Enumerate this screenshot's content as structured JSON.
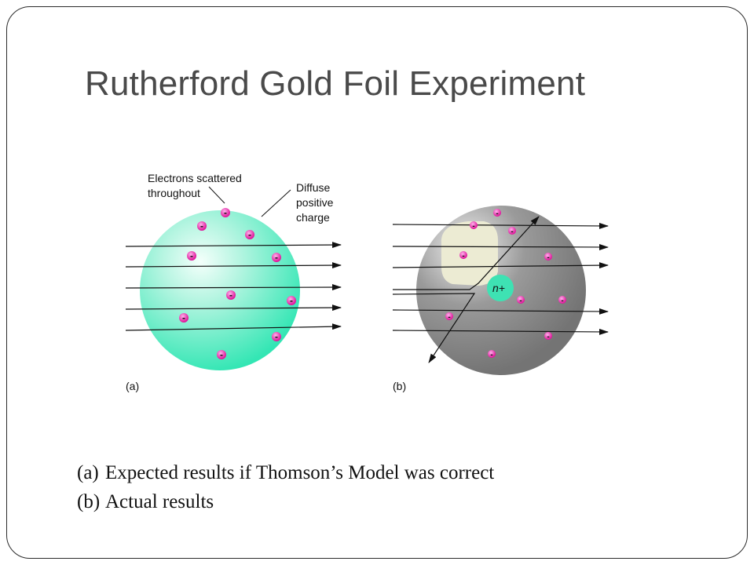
{
  "title": "Rutherford Gold Foil Experiment",
  "figure": {
    "panel_a": {
      "label": "(a)",
      "annotation_electrons": [
        "Electrons scattered",
        "throughout"
      ],
      "annotation_charge": [
        "Diffuse",
        "positive",
        "charge"
      ],
      "electron_symbol": "-"
    },
    "panel_b": {
      "label": "(b)",
      "nucleus_label": "n+",
      "electron_symbol": "-"
    }
  },
  "captions": [
    {
      "marker": "(a)",
      "text": "Expected results if Thomson’s Model was correct"
    },
    {
      "marker": "(b)",
      "text": "Actual results"
    }
  ]
}
